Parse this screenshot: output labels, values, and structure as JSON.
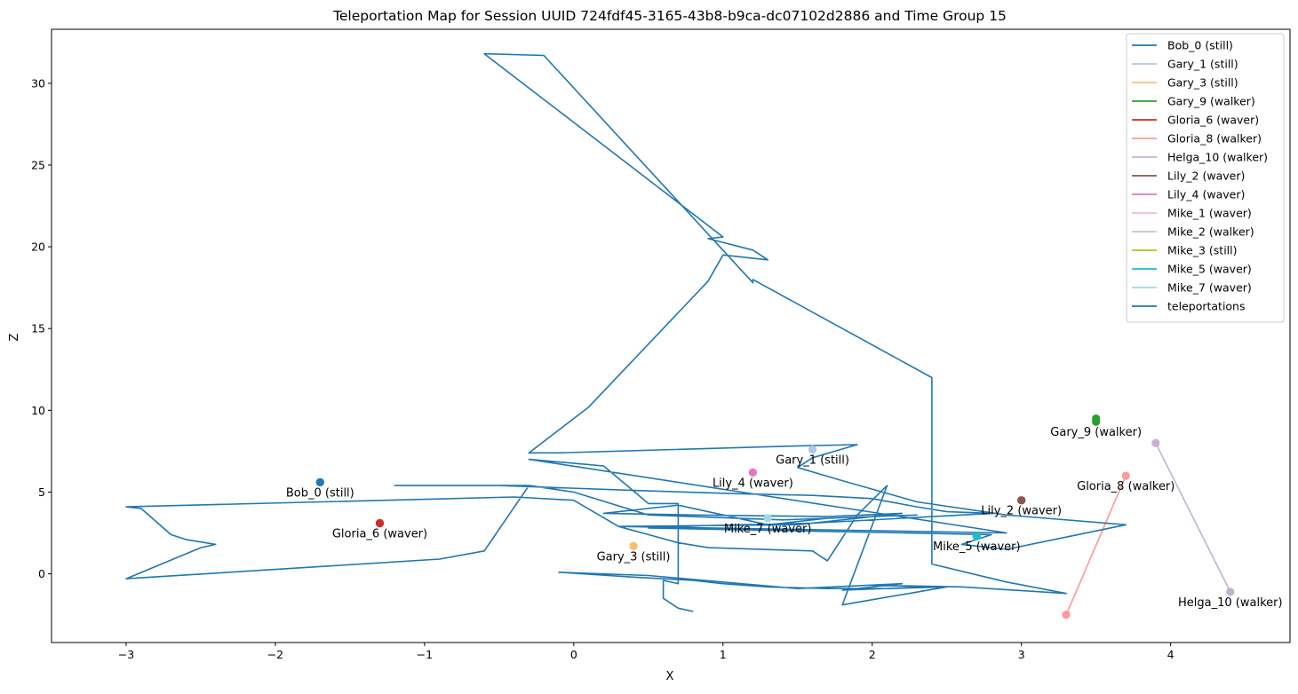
{
  "chart_data": {
    "type": "line",
    "title": "Teleportation Map for Session UUID 724fdf45-3165-43b8-b9ca-dc07102d2886 and Time Group 15",
    "xlabel": "X",
    "ylabel": "Z",
    "xlim": [
      -3.5,
      4.8
    ],
    "ylim": [
      -4.2,
      33.3
    ],
    "x_ticks": [
      -3,
      -2,
      -1,
      0,
      1,
      2,
      3,
      4
    ],
    "x_tick_labels": [
      "−3",
      "−2",
      "−1",
      "0",
      "1",
      "2",
      "3",
      "4"
    ],
    "y_ticks": [
      0,
      5,
      10,
      15,
      20,
      25,
      30
    ],
    "y_tick_labels": [
      "0",
      "5",
      "10",
      "15",
      "20",
      "25",
      "30"
    ],
    "grid": false,
    "legend_position": "top-right",
    "series": [
      {
        "name": "Bob_0 (still)",
        "label": "Bob_0 (still)",
        "color": "#1f77b4",
        "points": [
          [
            -1.7,
            5.6
          ],
          [
            -1.7,
            5.6
          ]
        ]
      },
      {
        "name": "Gary_1 (still)",
        "label": "Gary_1 (still)",
        "color": "#aec7e8",
        "points": [
          [
            1.6,
            7.6
          ],
          [
            1.6,
            7.6
          ]
        ]
      },
      {
        "name": "Gary_3 (still)",
        "label": "Gary_3 (still)",
        "color": "#ffbb78",
        "points": [
          [
            0.4,
            1.7
          ],
          [
            0.4,
            1.7
          ]
        ]
      },
      {
        "name": "Gary_9 (walker)",
        "label": "Gary_9 (walker)",
        "color": "#2ca02c",
        "points": [
          [
            3.5,
            9.5
          ],
          [
            3.5,
            9.3
          ]
        ]
      },
      {
        "name": "Gloria_6 (waver)",
        "label": "Gloria_6 (waver)",
        "color": "#d62728",
        "points": [
          [
            -1.3,
            3.1
          ],
          [
            -1.3,
            3.1
          ]
        ]
      },
      {
        "name": "Gloria_8 (walker)",
        "label": "Gloria_8 (walker)",
        "color": "#ff9896",
        "points": [
          [
            3.7,
            6.0
          ],
          [
            3.3,
            -2.5
          ]
        ]
      },
      {
        "name": "Helga_10 (walker)",
        "label": "Helga_10 (walker)",
        "color": "#c5b0d5",
        "points": [
          [
            3.9,
            8.0
          ],
          [
            4.4,
            -1.1
          ]
        ]
      },
      {
        "name": "Lily_2 (waver)",
        "label": "Lily_2 (waver)",
        "color": "#8c564b",
        "points": [
          [
            3.0,
            4.5
          ],
          [
            3.0,
            4.5
          ]
        ]
      },
      {
        "name": "Lily_4 (waver)",
        "label": "Lily_4 (waver)",
        "color": "#e377c2",
        "points": [
          [
            1.2,
            6.2
          ],
          [
            1.2,
            6.2
          ]
        ]
      },
      {
        "name": "Mike_1 (waver)",
        "label": "",
        "color": "#f7b6d2",
        "points": []
      },
      {
        "name": "Mike_2 (walker)",
        "label": "",
        "color": "#c7c7c7",
        "points": []
      },
      {
        "name": "Mike_3 (still)",
        "label": "",
        "color": "#bcbd22",
        "points": []
      },
      {
        "name": "Mike_5 (waver)",
        "label": "Mike_5 (waver)",
        "color": "#17becf",
        "points": [
          [
            2.7,
            2.3
          ],
          [
            2.7,
            2.3
          ]
        ]
      },
      {
        "name": "Mike_7 (waver)",
        "label": "Mike_7 (waver)",
        "color": "#9edae5",
        "points": [
          [
            1.3,
            3.4
          ],
          [
            1.3,
            3.4
          ]
        ]
      },
      {
        "name": "teleportations",
        "label": "",
        "color": "#1f77b4",
        "points": [
          [
            0.8,
            -2.3
          ],
          [
            0.7,
            -2.1
          ],
          [
            0.6,
            -1.5
          ],
          [
            0.6,
            -0.4
          ],
          [
            0.7,
            -0.6
          ],
          [
            0.7,
            4.3
          ],
          [
            0.5,
            4.3
          ],
          [
            0.2,
            6.6
          ],
          [
            -0.3,
            7.0
          ],
          [
            2.9,
            2.5
          ],
          [
            0.3,
            2.9
          ],
          [
            1.5,
            3.0
          ],
          [
            2.2,
            3.7
          ],
          [
            1.7,
            3.5
          ],
          [
            0.8,
            3.6
          ],
          [
            0.2,
            3.7
          ],
          [
            0.7,
            4.2
          ],
          [
            1.3,
            3.0
          ],
          [
            1.7,
            3.4
          ],
          [
            2.3,
            3.6
          ],
          [
            1.4,
            3.3
          ],
          [
            0.5,
            3.6
          ],
          [
            0.0,
            5.0
          ],
          [
            -0.3,
            5.4
          ],
          [
            -1.2,
            5.4
          ],
          [
            -0.5,
            5.4
          ],
          [
            0.4,
            5.1
          ],
          [
            1.1,
            4.9
          ],
          [
            1.6,
            4.8
          ],
          [
            2.0,
            4.6
          ],
          [
            2.3,
            4.1
          ],
          [
            2.5,
            3.8
          ],
          [
            2.8,
            3.7
          ],
          [
            2.2,
            3.4
          ],
          [
            1.6,
            3.1
          ],
          [
            1.1,
            3.0
          ],
          [
            0.7,
            2.9
          ],
          [
            0.5,
            2.8
          ],
          [
            2.8,
            2.4
          ],
          [
            2.6,
            1.8
          ],
          [
            2.9,
            1.5
          ],
          [
            3.7,
            3.0
          ],
          [
            2.9,
            3.6
          ],
          [
            2.3,
            4.4
          ],
          [
            1.8,
            5.7
          ],
          [
            1.5,
            6.5
          ],
          [
            1.6,
            7.1
          ],
          [
            1.9,
            7.9
          ],
          [
            1.4,
            7.8
          ],
          [
            -0.1,
            7.4
          ],
          [
            -0.3,
            7.4
          ],
          [
            0.1,
            10.2
          ],
          [
            0.9,
            17.9
          ],
          [
            1.0,
            19.5
          ],
          [
            1.3,
            19.2
          ],
          [
            1.2,
            19.8
          ],
          [
            0.9,
            20.5
          ],
          [
            1.0,
            20.6
          ],
          [
            -0.6,
            31.8
          ],
          [
            -0.2,
            31.7
          ],
          [
            1.2,
            17.8
          ],
          [
            1.2,
            18.0
          ],
          [
            2.4,
            12.0
          ],
          [
            2.4,
            0.6
          ],
          [
            2.9,
            -0.5
          ],
          [
            3.3,
            -1.2
          ],
          [
            2.6,
            -0.8
          ],
          [
            2.0,
            -0.7
          ],
          [
            2.4,
            -0.8
          ],
          [
            1.8,
            -1.0
          ],
          [
            2.2,
            -0.6
          ],
          [
            1.5,
            -0.9
          ],
          [
            0.5,
            -0.1
          ],
          [
            -0.1,
            0.1
          ],
          [
            0.4,
            -0.2
          ],
          [
            0.8,
            -0.4
          ],
          [
            1.0,
            -0.6
          ],
          [
            1.3,
            -0.8
          ],
          [
            1.7,
            -0.9
          ],
          [
            2.1,
            -0.9
          ],
          [
            2.5,
            -0.8
          ],
          [
            1.8,
            -1.9
          ],
          [
            2.1,
            5.4
          ],
          [
            1.9,
            3.6
          ],
          [
            1.7,
            0.8
          ],
          [
            1.6,
            1.4
          ],
          [
            0.9,
            1.6
          ],
          [
            0.7,
            1.9
          ],
          [
            0.5,
            2.4
          ],
          [
            0.3,
            2.9
          ],
          [
            0.0,
            4.5
          ],
          [
            -0.4,
            4.7
          ],
          [
            -3.0,
            4.1
          ],
          [
            -2.9,
            4.0
          ],
          [
            -2.7,
            2.4
          ],
          [
            -2.6,
            2.1
          ],
          [
            -2.4,
            1.8
          ],
          [
            -2.5,
            1.6
          ],
          [
            -3.0,
            -0.3
          ],
          [
            -0.9,
            0.9
          ],
          [
            -0.6,
            1.4
          ],
          [
            -0.3,
            5.4
          ]
        ]
      }
    ],
    "point_labels": [
      {
        "text": "Bob_0 (still)",
        "x": -1.7,
        "y": 5.6
      },
      {
        "text": "Gary_1 (still)",
        "x": 1.6,
        "y": 7.6
      },
      {
        "text": "Gary_3 (still)",
        "x": 0.4,
        "y": 1.7
      },
      {
        "text": "Gary_9 (walker)",
        "x": 3.5,
        "y": 9.3
      },
      {
        "text": "Gloria_6 (waver)",
        "x": -1.3,
        "y": 3.1
      },
      {
        "text": "Gloria_8 (walker)",
        "x": 3.7,
        "y": 6.0
      },
      {
        "text": "Helga_10 (walker)",
        "x": 4.4,
        "y": -1.1
      },
      {
        "text": "Lily_2 (waver)",
        "x": 3.0,
        "y": 4.5
      },
      {
        "text": "Lily_4 (waver)",
        "x": 1.2,
        "y": 6.2
      },
      {
        "text": "Mike_5 (waver)",
        "x": 2.7,
        "y": 2.3
      },
      {
        "text": "Mike_7 (waver)",
        "x": 1.3,
        "y": 3.4
      }
    ]
  }
}
